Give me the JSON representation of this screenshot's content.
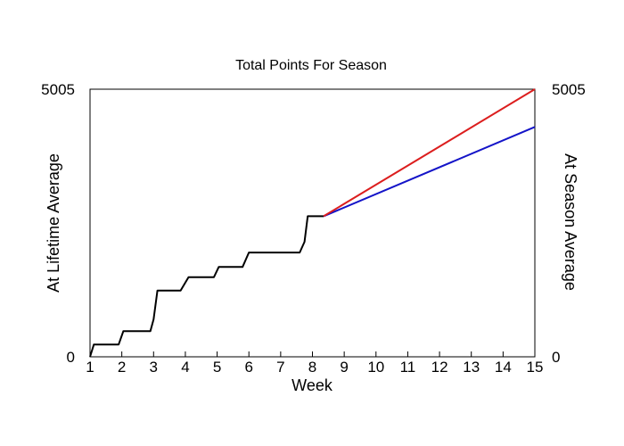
{
  "chart_data": {
    "type": "line",
    "title": "Total Points For Season",
    "xlabel": "Week",
    "ylabel_left": "At Lifetime Average",
    "ylabel_right": "At Season Average",
    "xlim": [
      1,
      15
    ],
    "ylim": [
      0,
      5005
    ],
    "x_ticks": [
      "1",
      "2",
      "3",
      "4",
      "5",
      "6",
      "7",
      "8",
      "9",
      "10",
      "11",
      "12",
      "13",
      "14",
      "15"
    ],
    "y_tick_labels_left": [
      "0",
      "5005"
    ],
    "y_tick_labels_right": [
      "0",
      "5005"
    ],
    "grid": false,
    "legend": "none",
    "colors": {
      "actual": "#000000",
      "lifetime": "#1414c8",
      "season": "#dc1e1e",
      "left_label": "#1414c8",
      "right_label": "#dc1e1e"
    },
    "series": [
      {
        "key": "actual",
        "points": [
          [
            1.0,
            0
          ],
          [
            1.12,
            230
          ],
          [
            1.9,
            230
          ],
          [
            2.05,
            480
          ],
          [
            2.9,
            480
          ],
          [
            3.0,
            700
          ],
          [
            3.12,
            1240
          ],
          [
            3.85,
            1240
          ],
          [
            4.1,
            1490
          ],
          [
            4.9,
            1490
          ],
          [
            5.05,
            1680
          ],
          [
            5.8,
            1680
          ],
          [
            6.0,
            1950
          ],
          [
            7.6,
            1950
          ],
          [
            7.75,
            2150
          ],
          [
            7.85,
            2630
          ],
          [
            8.35,
            2630
          ]
        ]
      },
      {
        "key": "lifetime",
        "points": [
          [
            8.35,
            2630
          ],
          [
            15.0,
            4300
          ]
        ]
      },
      {
        "key": "season",
        "points": [
          [
            8.35,
            2630
          ],
          [
            15.0,
            5005
          ]
        ]
      }
    ]
  }
}
